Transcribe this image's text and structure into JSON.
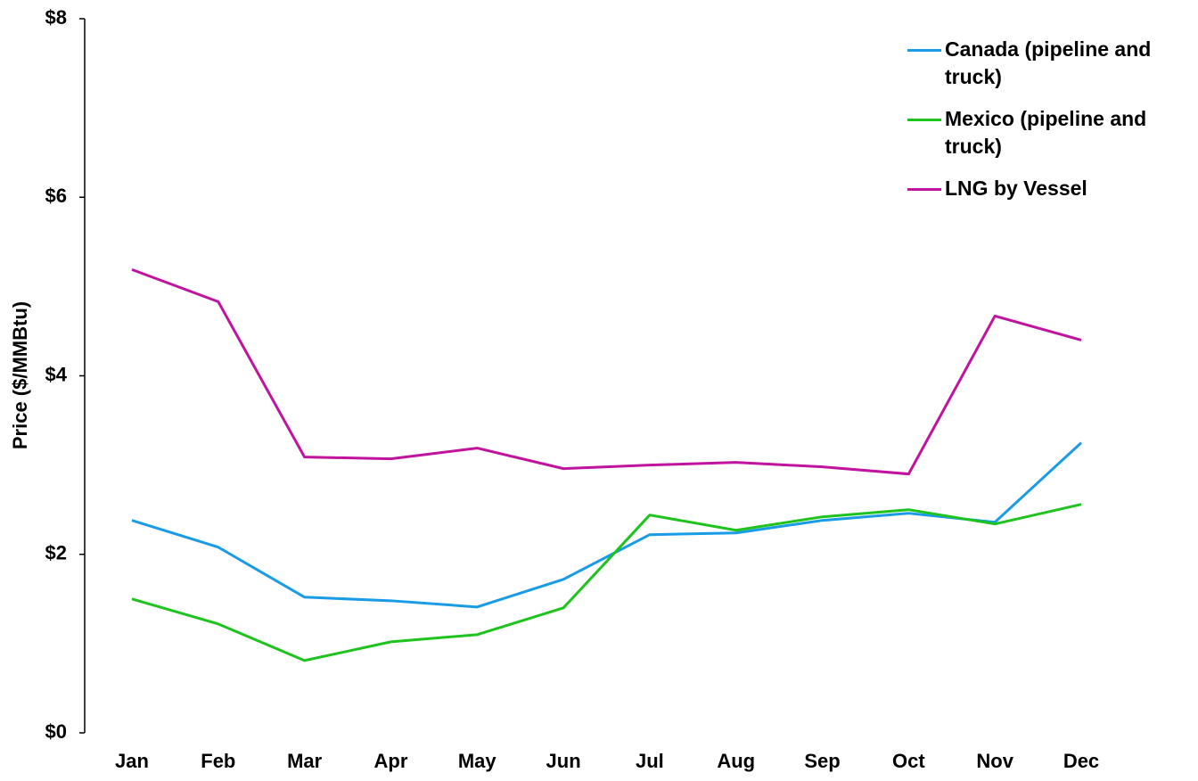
{
  "chart_data": {
    "type": "line",
    "y_label": "Price ($/MMBtu)",
    "categories": [
      "Jan",
      "Feb",
      "Mar",
      "Apr",
      "May",
      "Jun",
      "Jul",
      "Aug",
      "Sep",
      "Oct",
      "Nov",
      "Dec"
    ],
    "series": [
      {
        "name": "Canada (pipeline and truck)",
        "color": "#1a9be6",
        "values": [
          2.38,
          2.08,
          1.52,
          1.48,
          1.41,
          1.72,
          2.22,
          2.24,
          2.38,
          2.46,
          2.36,
          3.25
        ]
      },
      {
        "name": "Mexico (pipeline and truck)",
        "color": "#1ec31e",
        "values": [
          1.5,
          1.22,
          0.81,
          1.02,
          1.1,
          1.4,
          2.44,
          2.27,
          2.42,
          2.5,
          2.34,
          2.56
        ]
      },
      {
        "name": "LNG by Vessel",
        "color": "#c0139e",
        "values": [
          5.19,
          4.83,
          3.09,
          3.07,
          3.19,
          2.96,
          3.0,
          3.03,
          2.98,
          2.9,
          4.67,
          4.4
        ]
      }
    ],
    "ylim": [
      0,
      8
    ],
    "yticks": [
      {
        "value": 0,
        "label": "$0"
      },
      {
        "value": 2,
        "label": "$2"
      },
      {
        "value": 4,
        "label": "$4"
      },
      {
        "value": 6,
        "label": "$6"
      },
      {
        "value": 8,
        "label": "$8"
      }
    ],
    "legend": "upper right"
  }
}
